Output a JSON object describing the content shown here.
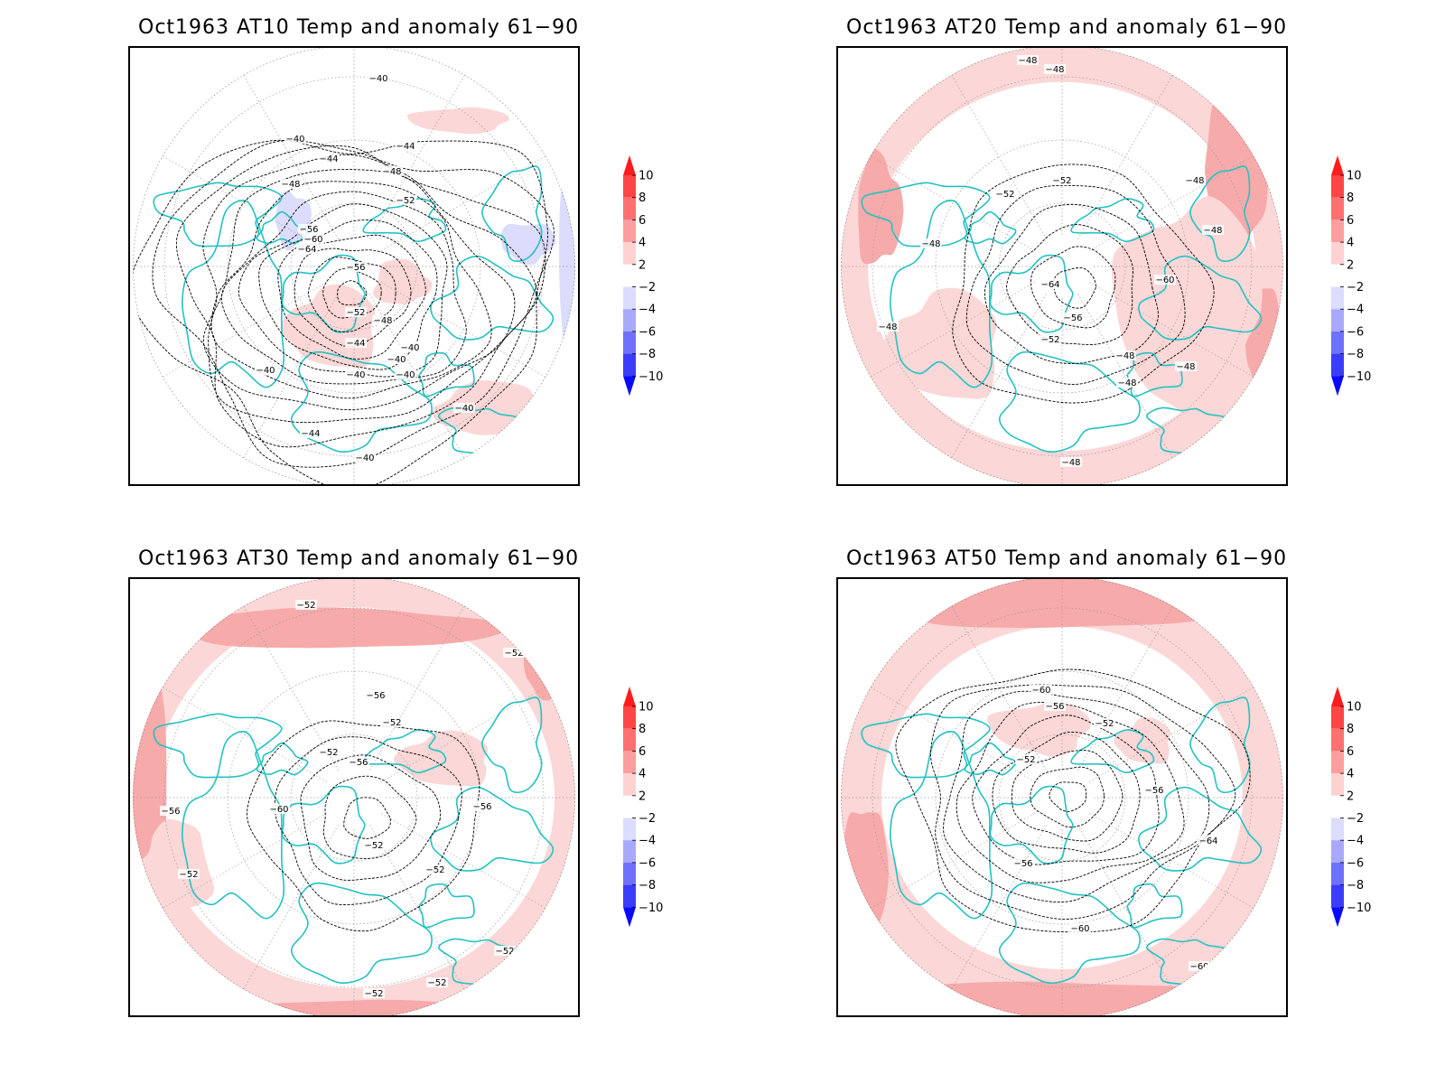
{
  "colors": {
    "warm_light": "#fbd7d7",
    "warm_mid": "#f7aaaa",
    "warm_strong": "#f06e6e",
    "cool_light": "#dcdcfc",
    "coast": "#24c2c2",
    "contour": "#000000",
    "grid": "#999999"
  },
  "colorbar": {
    "labels": [
      "10",
      "8",
      "6",
      "4",
      "2",
      "−2",
      "−4",
      "−6",
      "−8",
      "−10"
    ],
    "colors": [
      "#ff1c1c",
      "#ff4545",
      "#ff7070",
      "#ff9e9e",
      "#ffd2d2",
      "#ffffff",
      "#dcdcff",
      "#a8a8ff",
      "#7070ff",
      "#3c3cff",
      "#0a0aff"
    ]
  },
  "panels": [
    {
      "title": "Oct1963 AT10 Temp and anomaly 61−90",
      "contour_labels": [
        "−40",
        "−40",
        "−44",
        "−44",
        "−48",
        "−48",
        "−52",
        "−56",
        "−64",
        "−60",
        "−56",
        "−52",
        "−48",
        "−44",
        "−40",
        "−40",
        "−40",
        "−40",
        "−40",
        "−40",
        "−44",
        "−40"
      ]
    },
    {
      "title": "Oct1963 AT20 Temp and anomaly 61−90",
      "contour_labels": [
        "−48",
        "−48",
        "−52",
        "−52",
        "−48",
        "−48",
        "−48",
        "−64",
        "−60",
        "−56",
        "−52",
        "−48",
        "−48",
        "−48",
        "−48",
        "−48"
      ]
    },
    {
      "title": "Oct1963 AT30 Temp and anomaly 61−90",
      "contour_labels": [
        "−52",
        "−52",
        "−56",
        "−52",
        "−52",
        "−56",
        "−56",
        "−60",
        "−56",
        "−52",
        "−52",
        "−52",
        "−52",
        "−52",
        "−52"
      ]
    },
    {
      "title": "Oct1963 AT50 Temp and anomaly 61−90",
      "contour_labels": [
        "−60",
        "−56",
        "−52",
        "−52",
        "−56",
        "−56",
        "−64",
        "−60",
        "−60"
      ]
    }
  ]
}
